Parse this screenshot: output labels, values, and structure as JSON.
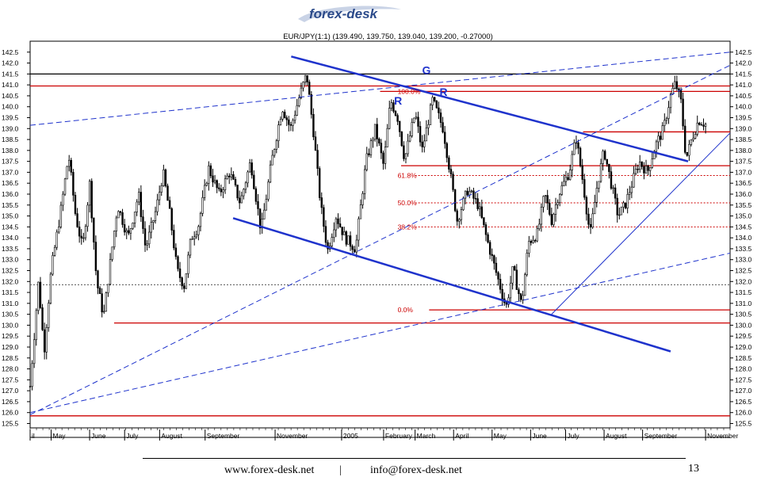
{
  "logo": {
    "text": "forex-desk",
    "color_text": "#2b4a8a",
    "color_swoosh": "#c9d3e6"
  },
  "footer": {
    "website": "www.forex-desk.net",
    "separator": "|",
    "email": "info@forex-desk.net",
    "page_number": "13"
  },
  "chart_data": {
    "type": "candlestick",
    "title": "EUR/JPY(1:1) (139.490, 139.750, 139.040, 139.200, -0.27000)",
    "ylim": [
      125.3,
      143.0
    ],
    "y_ticks": [
      125.5,
      126.0,
      126.5,
      127.0,
      127.5,
      128.0,
      128.5,
      129.0,
      129.5,
      130.0,
      130.5,
      131.0,
      131.5,
      132.0,
      132.5,
      133.0,
      133.5,
      134.0,
      134.5,
      135.0,
      135.5,
      136.0,
      136.5,
      137.0,
      137.5,
      138.0,
      138.5,
      139.0,
      139.5,
      140.0,
      140.5,
      141.0,
      141.5,
      142.0,
      142.5
    ],
    "y_tick_labels": [
      "125.5",
      "126.0",
      "126.5",
      "127.0",
      "127.5",
      "128.0",
      "128.5",
      "129.0",
      "129.5",
      "130.0",
      "130.5",
      "131.0",
      "131.5",
      "132.0",
      "132.5",
      "133.0",
      "133.5",
      "134.0",
      "134.5",
      "135.0",
      "135.5",
      "136.0",
      "136.5",
      "137.0",
      "137.5",
      "138.0",
      "138.5",
      "139.0",
      "139.5",
      "140.0",
      "140.5",
      "141.0",
      "141.5",
      "142.0",
      "142.5"
    ],
    "x_months": [
      {
        "label": "il",
        "x": 0
      },
      {
        "label": "May",
        "x": 0.03
      },
      {
        "label": "June",
        "x": 0.085
      },
      {
        "label": "July",
        "x": 0.135
      },
      {
        "label": "August",
        "x": 0.185
      },
      {
        "label": "September",
        "x": 0.25
      },
      {
        "label": "November",
        "x": 0.35
      },
      {
        "label": "2005",
        "x": 0.445
      },
      {
        "label": "February",
        "x": 0.505
      },
      {
        "label": "March",
        "x": 0.55
      },
      {
        "label": "April",
        "x": 0.605
      },
      {
        "label": "May",
        "x": 0.66
      },
      {
        "label": "June",
        "x": 0.715
      },
      {
        "label": "July",
        "x": 0.765
      },
      {
        "label": "August",
        "x": 0.82
      },
      {
        "label": "September",
        "x": 0.875
      },
      {
        "label": "November",
        "x": 0.965
      }
    ],
    "price_path": [
      [
        0,
        127.2
      ],
      [
        0.012,
        132.0
      ],
      [
        0.02,
        128.8
      ],
      [
        0.03,
        132.5
      ],
      [
        0.045,
        135.5
      ],
      [
        0.055,
        137.8
      ],
      [
        0.065,
        135.0
      ],
      [
        0.075,
        133.5
      ],
      [
        0.085,
        136.5
      ],
      [
        0.095,
        132.0
      ],
      [
        0.105,
        130.4
      ],
      [
        0.115,
        133.0
      ],
      [
        0.125,
        135.5
      ],
      [
        0.14,
        134.0
      ],
      [
        0.155,
        136.0
      ],
      [
        0.165,
        133.5
      ],
      [
        0.18,
        135.3
      ],
      [
        0.19,
        137.0
      ],
      [
        0.2,
        135.0
      ],
      [
        0.21,
        132.5
      ],
      [
        0.22,
        131.8
      ],
      [
        0.23,
        134.0
      ],
      [
        0.24,
        134.5
      ],
      [
        0.255,
        137.2
      ],
      [
        0.27,
        136.0
      ],
      [
        0.285,
        137.0
      ],
      [
        0.3,
        135.6
      ],
      [
        0.315,
        137.5
      ],
      [
        0.33,
        134.3
      ],
      [
        0.345,
        137.5
      ],
      [
        0.36,
        140.0
      ],
      [
        0.372,
        139.0
      ],
      [
        0.385,
        140.5
      ],
      [
        0.395,
        141.5
      ],
      [
        0.405,
        138.8
      ],
      [
        0.415,
        135.5
      ],
      [
        0.425,
        133.4
      ],
      [
        0.437,
        135.0
      ],
      [
        0.45,
        134.0
      ],
      [
        0.465,
        133.5
      ],
      [
        0.48,
        137.5
      ],
      [
        0.493,
        139.0
      ],
      [
        0.505,
        137.3
      ],
      [
        0.515,
        140.3
      ],
      [
        0.525,
        139.5
      ],
      [
        0.535,
        137.6
      ],
      [
        0.55,
        139.7
      ],
      [
        0.56,
        138.0
      ],
      [
        0.575,
        140.3
      ],
      [
        0.59,
        139.0
      ],
      [
        0.6,
        137.0
      ],
      [
        0.61,
        134.8
      ],
      [
        0.625,
        136.2
      ],
      [
        0.64,
        135.5
      ],
      [
        0.652,
        134.0
      ],
      [
        0.665,
        132.5
      ],
      [
        0.68,
        130.8
      ],
      [
        0.69,
        132.6
      ],
      [
        0.702,
        130.9
      ],
      [
        0.712,
        133.8
      ],
      [
        0.725,
        134.2
      ],
      [
        0.735,
        136.0
      ],
      [
        0.745,
        134.8
      ],
      [
        0.755,
        136.0
      ],
      [
        0.77,
        137.0
      ],
      [
        0.78,
        138.6
      ],
      [
        0.79,
        136.5
      ],
      [
        0.8,
        134.1
      ],
      [
        0.81,
        136.4
      ],
      [
        0.82,
        138.0
      ],
      [
        0.83,
        136.5
      ],
      [
        0.84,
        135.0
      ],
      [
        0.85,
        135.5
      ],
      [
        0.86,
        136.5
      ],
      [
        0.87,
        137.5
      ],
      [
        0.882,
        137.0
      ],
      [
        0.893,
        138.2
      ],
      [
        0.905,
        139.0
      ],
      [
        0.915,
        140.5
      ],
      [
        0.922,
        141.1
      ],
      [
        0.93,
        140.2
      ],
      [
        0.937,
        137.6
      ],
      [
        0.945,
        138.5
      ],
      [
        0.955,
        139.4
      ],
      [
        0.965,
        139.2
      ]
    ],
    "horizontal_lines": [
      {
        "y": 141.5,
        "color": "#000000",
        "from": 0.0,
        "to": 1.0
      },
      {
        "y": 140.95,
        "color": "#cc0000",
        "from": 0.0,
        "to": 1.0
      },
      {
        "y": 140.7,
        "color": "#cc0000",
        "from": 0.5,
        "to": 1.0
      },
      {
        "y": 138.85,
        "color": "#cc0000",
        "from": 0.79,
        "to": 1.0
      },
      {
        "y": 137.3,
        "color": "#cc0000",
        "from": 0.53,
        "to": 1.0
      },
      {
        "y": 130.1,
        "color": "#cc0000",
        "from": 0.12,
        "to": 1.0
      },
      {
        "y": 130.7,
        "color": "#cc0000",
        "from": 0.57,
        "to": 1.0
      },
      {
        "y": 125.85,
        "color": "#cc0000",
        "from": 0.0,
        "to": 1.0
      }
    ],
    "dotted_lines": [
      {
        "y": 136.85,
        "from": 0.55,
        "to": 1.0
      },
      {
        "y": 135.6,
        "from": 0.55,
        "to": 1.0
      },
      {
        "y": 134.5,
        "from": 0.55,
        "to": 1.0
      },
      {
        "y": 131.85,
        "from": 0.0,
        "to": 1.0
      }
    ],
    "fib_labels": [
      {
        "text": "100.0%",
        "x": 0.525,
        "y": 140.7
      },
      {
        "text": "61.8%",
        "x": 0.525,
        "y": 136.85
      },
      {
        "text": "50.0%",
        "x": 0.525,
        "y": 135.6
      },
      {
        "text": "38.2%",
        "x": 0.525,
        "y": 134.5
      },
      {
        "text": "0.0%",
        "x": 0.525,
        "y": 130.7
      }
    ],
    "trend_lines": [
      {
        "x1": 0.373,
        "y1": 142.3,
        "x2": 0.94,
        "y2": 137.5,
        "width": 2.5,
        "dash": ""
      },
      {
        "x1": 0.29,
        "y1": 134.9,
        "x2": 0.915,
        "y2": 128.8,
        "width": 2.5,
        "dash": ""
      },
      {
        "x1": 0.745,
        "y1": 130.5,
        "x2": 1.0,
        "y2": 138.8,
        "width": 1,
        "dash": ""
      },
      {
        "x1": 0.0,
        "y1": 139.15,
        "x2": 1.0,
        "y2": 142.5,
        "width": 1,
        "dash": "7,4"
      },
      {
        "x1": 0.0,
        "y1": 126.0,
        "x2": 1.0,
        "y2": 133.3,
        "width": 1,
        "dash": "7,4"
      },
      {
        "x1": 0.0,
        "y1": 125.9,
        "x2": 1.0,
        "y2": 141.9,
        "width": 1,
        "dash": "7,4"
      }
    ],
    "pattern_labels": [
      {
        "text": "R",
        "x": 0.52,
        "y": 140.1
      },
      {
        "text": "G",
        "x": 0.56,
        "y": 141.5
      },
      {
        "text": "R",
        "x": 0.585,
        "y": 140.5
      }
    ],
    "colors": {
      "price": "#000000",
      "trend": "#1f33cc",
      "level": "#cc0000",
      "fib_text": "#cc0000"
    }
  }
}
